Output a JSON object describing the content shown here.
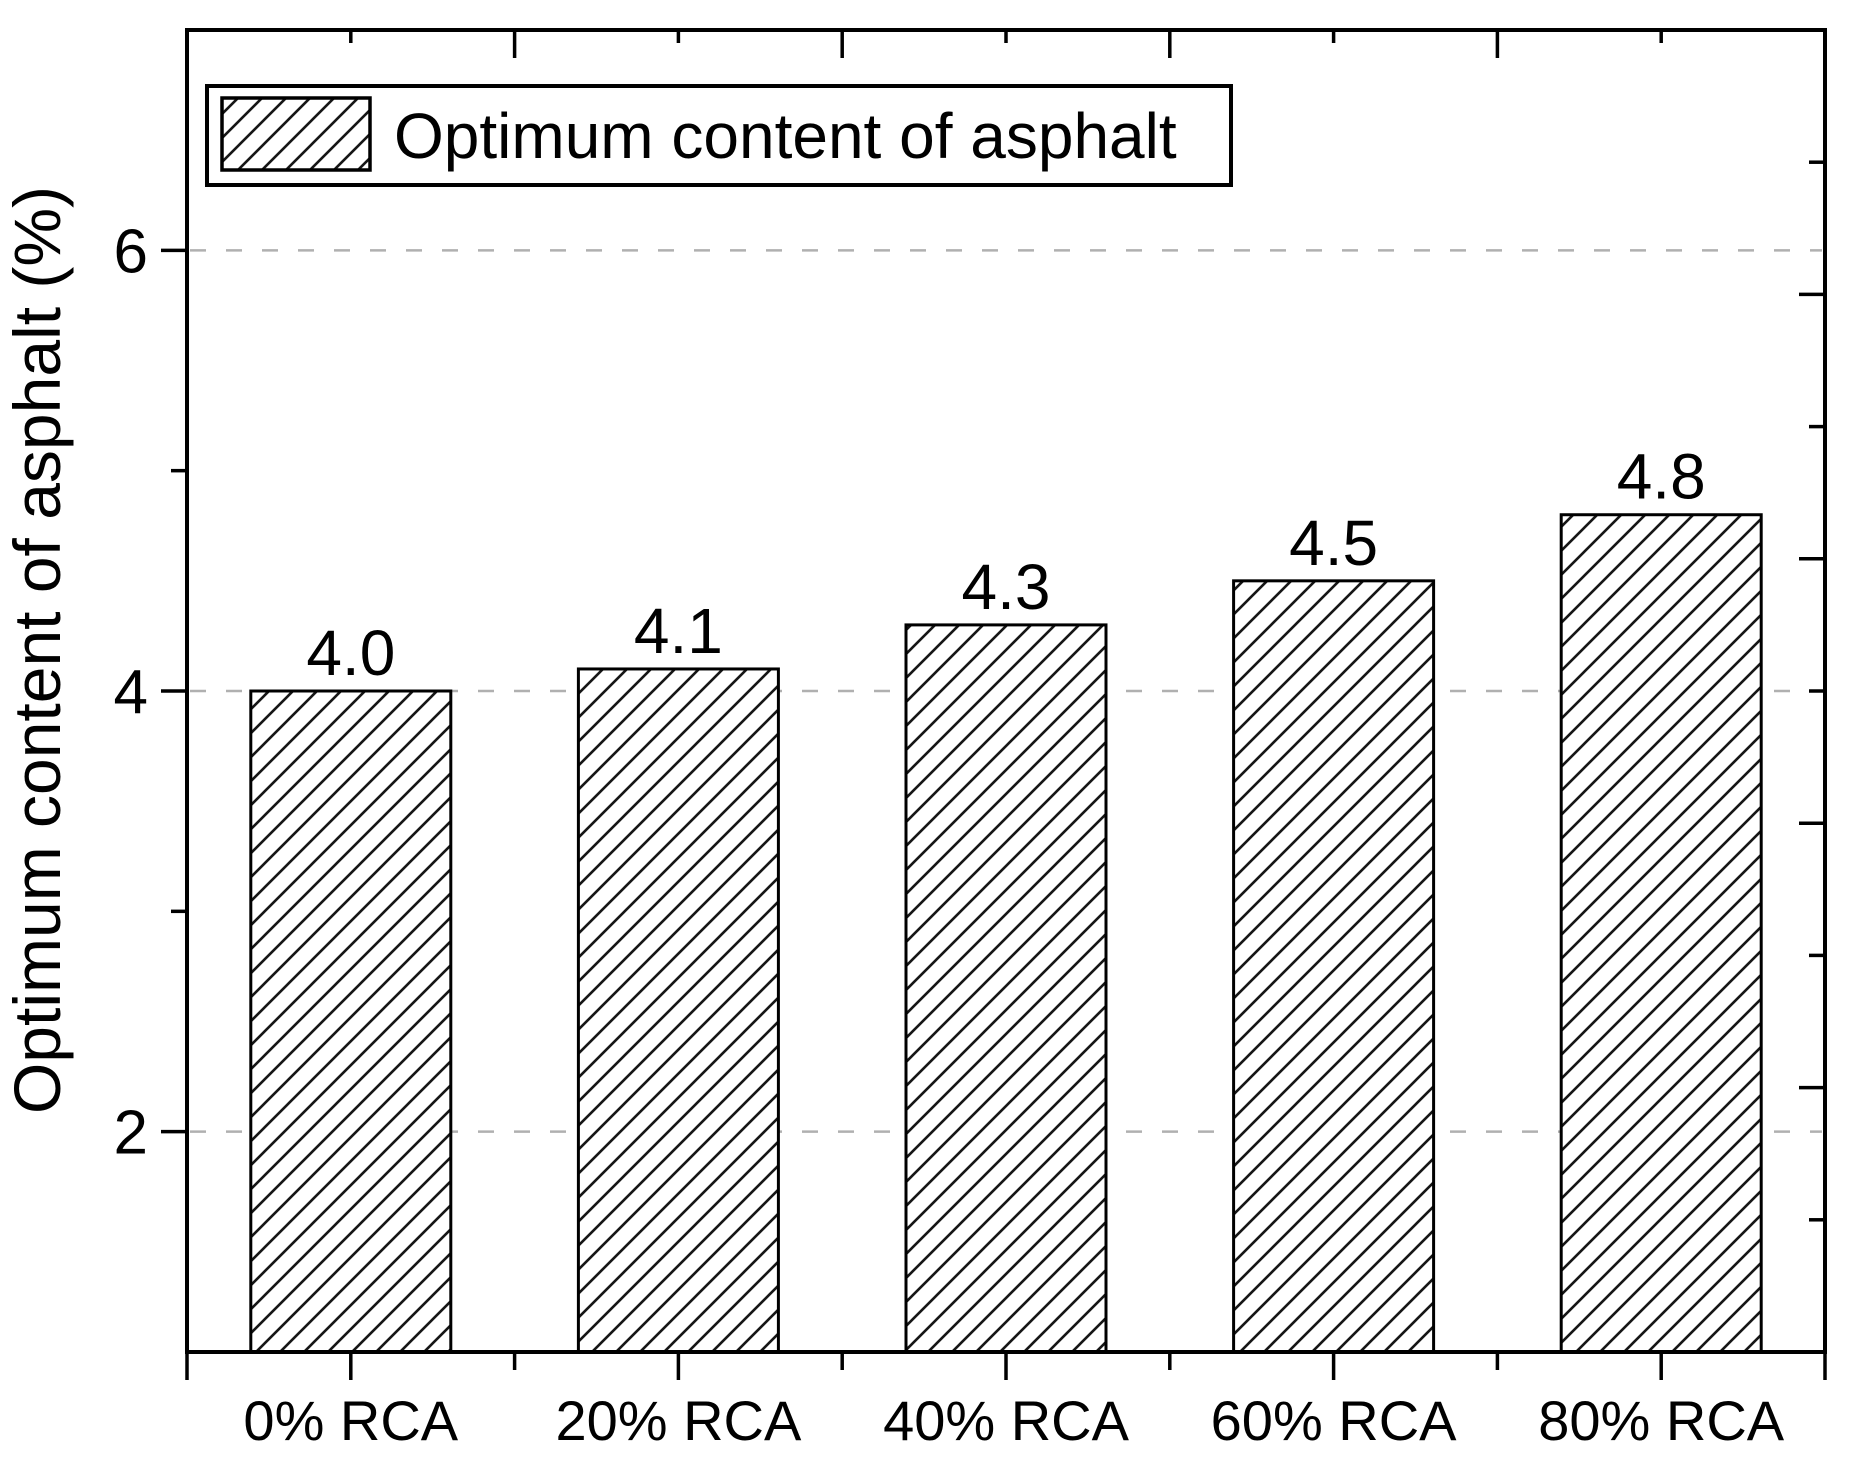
{
  "chart_data": {
    "type": "bar",
    "title": "",
    "xlabel": "",
    "ylabel": "Optimum content of asphalt (%)",
    "categories": [
      "0% RCA",
      "20% RCA",
      "40% RCA",
      "60% RCA",
      "80% RCA"
    ],
    "values": [
      4.0,
      4.1,
      4.3,
      4.5,
      4.8
    ],
    "bar_value_labels": [
      "4.0",
      "4.1",
      "4.3",
      "4.5",
      "4.8"
    ],
    "series_name": "Optimum content of asphalt",
    "ylim": [
      1,
      7
    ],
    "yticks": [
      2,
      4,
      6
    ],
    "ytick_labels": [
      "2",
      "4",
      "6"
    ],
    "yticks_minor": [
      3,
      5
    ],
    "right_axis": {
      "range": [
        0,
        5
      ],
      "major_step": 1,
      "minor_step": 0.5,
      "labels_shown": false
    },
    "grid": {
      "show": true,
      "axis": "y",
      "at": [
        2,
        4,
        6
      ],
      "style": "dashed",
      "color": "#b0b0b0"
    },
    "legend": {
      "position": "top-left",
      "entries": [
        {
          "label": "Optimum content of asphalt",
          "pattern": "diagonal-hatch"
        }
      ]
    },
    "bar_style": {
      "fill_pattern": "diagonal-hatch",
      "hatch_direction": "/",
      "hatch_color": "#161616",
      "outline_color": "#000000",
      "bar_background": "#ffffff"
    }
  },
  "colors": {
    "background": "#ffffff",
    "axis": "#000000",
    "text": "#000000",
    "gridline": "#b0b0b0"
  }
}
